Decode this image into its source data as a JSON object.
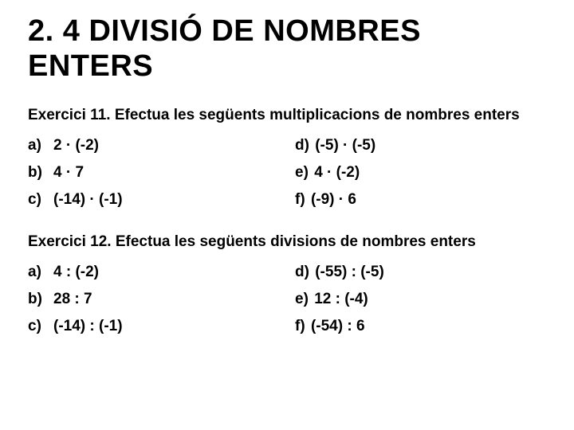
{
  "page_title": "2. 4 DIVISIÓ DE NOMBRES ENTERS",
  "exercises": [
    {
      "heading": "Exercici 11. Efectua les següents multiplicacions de nombres enters",
      "left_column": [
        {
          "letter": "a)",
          "content": "2 · (-2)"
        },
        {
          "letter": "b)",
          "content": "4 · 7"
        },
        {
          "letter": "c)",
          "content": "(-14) · (-1)"
        }
      ],
      "right_column": [
        {
          "letter": "d)",
          "content": "(-5) · (-5)"
        },
        {
          "letter": "e)",
          "content": "4 · (-2)"
        },
        {
          "letter": "f)",
          "content": "(-9) · 6"
        }
      ]
    },
    {
      "heading": "Exercici 12. Efectua les següents divisions de nombres enters",
      "left_column": [
        {
          "letter": "a)",
          "content": "4 : (-2)"
        },
        {
          "letter": "b)",
          "content": "28 : 7"
        },
        {
          "letter": "c)",
          "content": "(-14) : (-1)"
        }
      ],
      "right_column": [
        {
          "letter": "d)",
          "content": "(-55) : (-5)"
        },
        {
          "letter": "e)",
          "content": "12 : (-4)"
        },
        {
          "letter": "f)",
          "content": "(-54) :  6"
        }
      ]
    }
  ],
  "colors": {
    "background": "#ffffff",
    "text": "#000000"
  },
  "typography": {
    "title_fontsize": 38,
    "title_weight": 900,
    "heading_fontsize": 19,
    "heading_weight": 700,
    "item_fontsize": 19,
    "item_weight": 700,
    "font_family": "Arial"
  }
}
